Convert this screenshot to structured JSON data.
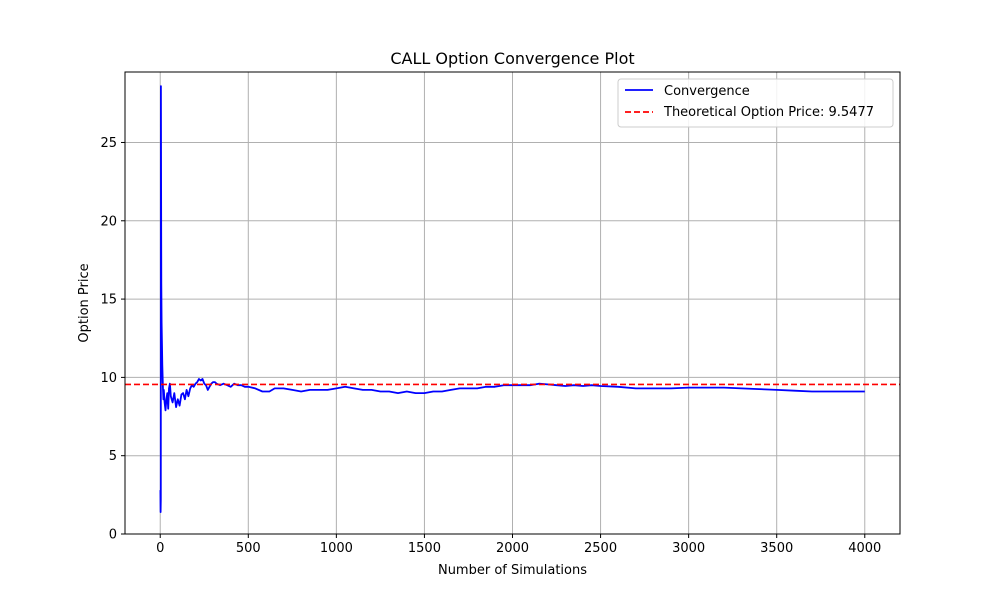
{
  "chart_data": {
    "type": "line",
    "title": "CALL Option Convergence Plot",
    "xlabel": "Number of Simulations",
    "ylabel": "Option Price",
    "xlim": [
      -200,
      4200
    ],
    "ylim": [
      0,
      29.5
    ],
    "xticks": [
      0,
      500,
      1000,
      1500,
      2000,
      2500,
      3000,
      3500,
      4000
    ],
    "yticks": [
      0,
      5,
      10,
      15,
      20,
      25
    ],
    "grid": true,
    "legend_position": "top-right",
    "series": [
      {
        "name": "Convergence",
        "color": "#0000ff",
        "points": [
          [
            1,
            2.8
          ],
          [
            2,
            1.4
          ],
          [
            3,
            2.2
          ],
          [
            4,
            28.6
          ],
          [
            5,
            22.0
          ],
          [
            6,
            16.0
          ],
          [
            8,
            13.5
          ],
          [
            10,
            12.0
          ],
          [
            12,
            10.8
          ],
          [
            15,
            9.4
          ],
          [
            18,
            8.6
          ],
          [
            20,
            9.2
          ],
          [
            25,
            8.4
          ],
          [
            30,
            7.9
          ],
          [
            35,
            8.6
          ],
          [
            40,
            9.0
          ],
          [
            45,
            8.0
          ],
          [
            50,
            9.3
          ],
          [
            55,
            9.6
          ],
          [
            60,
            8.8
          ],
          [
            70,
            8.4
          ],
          [
            80,
            9.0
          ],
          [
            90,
            8.1
          ],
          [
            100,
            8.6
          ],
          [
            110,
            8.2
          ],
          [
            120,
            8.9
          ],
          [
            130,
            9.0
          ],
          [
            140,
            8.6
          ],
          [
            150,
            9.2
          ],
          [
            160,
            8.8
          ],
          [
            170,
            9.3
          ],
          [
            180,
            9.5
          ],
          [
            190,
            9.4
          ],
          [
            200,
            9.6
          ],
          [
            210,
            9.7
          ],
          [
            220,
            9.9
          ],
          [
            230,
            9.8
          ],
          [
            240,
            9.9
          ],
          [
            250,
            9.6
          ],
          [
            260,
            9.5
          ],
          [
            270,
            9.2
          ],
          [
            280,
            9.4
          ],
          [
            290,
            9.6
          ],
          [
            300,
            9.7
          ],
          [
            310,
            9.7
          ],
          [
            320,
            9.6
          ],
          [
            340,
            9.5
          ],
          [
            360,
            9.6
          ],
          [
            380,
            9.5
          ],
          [
            400,
            9.4
          ],
          [
            420,
            9.6
          ],
          [
            440,
            9.5
          ],
          [
            460,
            9.5
          ],
          [
            480,
            9.4
          ],
          [
            500,
            9.4
          ],
          [
            540,
            9.3
          ],
          [
            580,
            9.1
          ],
          [
            620,
            9.1
          ],
          [
            650,
            9.3
          ],
          [
            700,
            9.3
          ],
          [
            750,
            9.2
          ],
          [
            800,
            9.1
          ],
          [
            850,
            9.2
          ],
          [
            900,
            9.2
          ],
          [
            950,
            9.2
          ],
          [
            1000,
            9.3
          ],
          [
            1050,
            9.4
          ],
          [
            1100,
            9.3
          ],
          [
            1150,
            9.2
          ],
          [
            1200,
            9.2
          ],
          [
            1250,
            9.1
          ],
          [
            1300,
            9.1
          ],
          [
            1350,
            9.0
          ],
          [
            1400,
            9.1
          ],
          [
            1450,
            9.0
          ],
          [
            1500,
            9.0
          ],
          [
            1550,
            9.1
          ],
          [
            1600,
            9.1
          ],
          [
            1650,
            9.2
          ],
          [
            1700,
            9.3
          ],
          [
            1750,
            9.3
          ],
          [
            1800,
            9.3
          ],
          [
            1850,
            9.4
          ],
          [
            1900,
            9.4
          ],
          [
            1950,
            9.5
          ],
          [
            2000,
            9.5
          ],
          [
            2050,
            9.5
          ],
          [
            2100,
            9.5
          ],
          [
            2150,
            9.6
          ],
          [
            2200,
            9.55
          ],
          [
            2250,
            9.5
          ],
          [
            2300,
            9.45
          ],
          [
            2350,
            9.5
          ],
          [
            2400,
            9.45
          ],
          [
            2450,
            9.5
          ],
          [
            2500,
            9.45
          ],
          [
            2600,
            9.4
          ],
          [
            2700,
            9.3
          ],
          [
            2800,
            9.3
          ],
          [
            2900,
            9.3
          ],
          [
            3000,
            9.35
          ],
          [
            3100,
            9.35
          ],
          [
            3200,
            9.35
          ],
          [
            3300,
            9.3
          ],
          [
            3400,
            9.25
          ],
          [
            3500,
            9.2
          ],
          [
            3600,
            9.15
          ],
          [
            3700,
            9.1
          ],
          [
            3800,
            9.1
          ],
          [
            3900,
            9.1
          ],
          [
            4000,
            9.1
          ]
        ]
      },
      {
        "name": "Theoretical Option Price: 9.5477",
        "color": "#ff0000",
        "style": "dashed",
        "value": 9.5477
      }
    ]
  }
}
